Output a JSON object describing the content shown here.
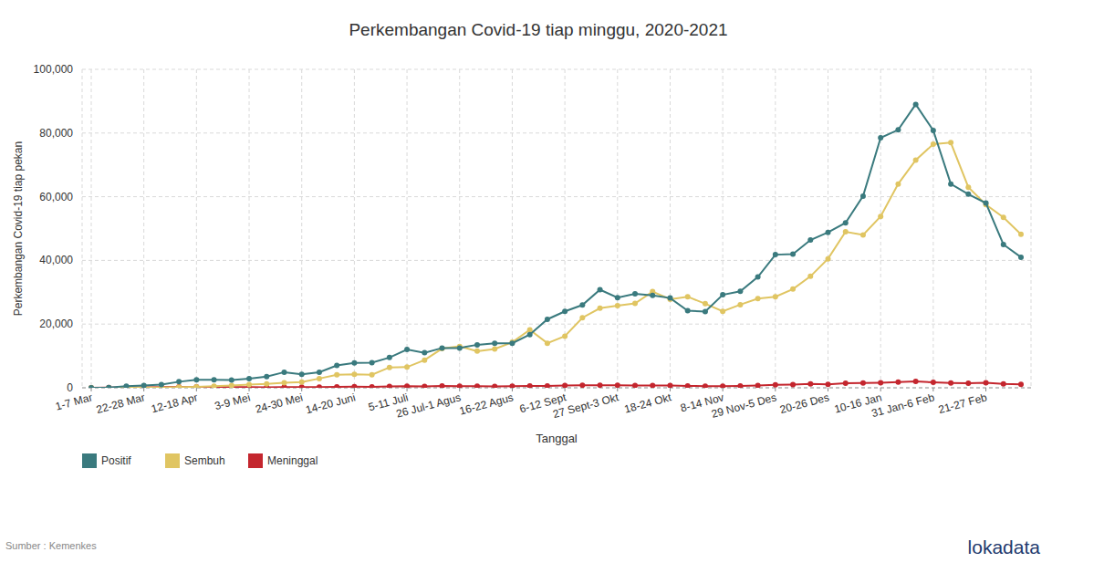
{
  "chart_data": {
    "type": "line",
    "title": "Perkembangan Covid-19 tiap minggu, 2020-2021",
    "x_label": "Tanggal",
    "y_label": "Perkembangan Covid-19 tiap pekan",
    "source": "Sumber : Kemenkes",
    "brand": "lokadata",
    "categories": [
      "1-7 Mar",
      null,
      null,
      "22-28 Mar",
      null,
      null,
      "12-18 Apr",
      null,
      null,
      "3-9 Mei",
      null,
      null,
      "24-30 Mei",
      null,
      null,
      "14-20 Juni",
      null,
      null,
      "5-11 Juli",
      null,
      null,
      "26 Jul-1 Agus",
      null,
      null,
      "16-22 Agus",
      null,
      null,
      "6-12 Sept",
      null,
      null,
      "27 Sept-3 Okt",
      null,
      null,
      "18-24 Okt",
      null,
      null,
      "8-14 Nov",
      null,
      null,
      "29 Nov-5 Des",
      null,
      null,
      "20-26 Des",
      null,
      null,
      "10-16 Jan",
      null,
      null,
      "31 Jan-6 Feb",
      null,
      null,
      "21-27 Feb",
      null,
      null
    ],
    "series": [
      {
        "name": "Positif",
        "color": "#3a7a7e",
        "values": [
          2,
          100,
          500,
          700,
          1000,
          1900,
          2500,
          2500,
          2400,
          2900,
          3500,
          4900,
          4200,
          4900,
          7000,
          7800,
          7900,
          9500,
          12000,
          11000,
          12500,
          12500,
          13500,
          14000,
          14000,
          16700,
          21500,
          24000,
          26000,
          30800,
          28300,
          29500,
          29000,
          28200,
          24200,
          23900,
          29200,
          30300,
          34800,
          41800,
          42000,
          46400,
          48800,
          51800,
          60200,
          78500,
          81000,
          89000,
          80800,
          64000,
          60800,
          58000,
          45000,
          41000
        ]
      },
      {
        "name": "Sembuh",
        "color": "#e0c562",
        "values": [
          0,
          0,
          30,
          50,
          100,
          200,
          300,
          500,
          700,
          1000,
          1200,
          1600,
          1800,
          2900,
          4100,
          4200,
          4100,
          6400,
          6500,
          8700,
          12300,
          13000,
          11500,
          12200,
          14300,
          18200,
          14000,
          16200,
          22000,
          25000,
          25800,
          26500,
          30200,
          27800,
          28600,
          26400,
          24000,
          26100,
          28000,
          28600,
          31000,
          35000,
          40500,
          49000,
          48000,
          53800,
          64000,
          71500,
          76500,
          77000,
          63000,
          57500,
          53500,
          48200
        ]
      },
      {
        "name": "Meninggal",
        "color": "#c4262e",
        "values": [
          0,
          50,
          150,
          150,
          200,
          300,
          300,
          250,
          200,
          200,
          150,
          250,
          250,
          250,
          300,
          350,
          300,
          400,
          500,
          450,
          550,
          500,
          500,
          450,
          500,
          600,
          600,
          700,
          800,
          800,
          800,
          700,
          700,
          700,
          600,
          500,
          500,
          550,
          700,
          900,
          1000,
          1200,
          1100,
          1400,
          1500,
          1600,
          1800,
          2000,
          1700,
          1500,
          1400,
          1600,
          1200,
          1100
        ]
      }
    ],
    "ylim": [
      0,
      100000
    ],
    "yticks": [
      0,
      {
        "value": 20000,
        "label": "20,000"
      },
      {
        "value": 40000,
        "label": "40,000"
      },
      {
        "value": 60000,
        "label": "60,000"
      },
      {
        "value": 80000,
        "label": "80,000"
      },
      {
        "value": 100000,
        "label": "100,000"
      }
    ],
    "grid": true,
    "legend": "bottom-left",
    "marker": "circle"
  }
}
